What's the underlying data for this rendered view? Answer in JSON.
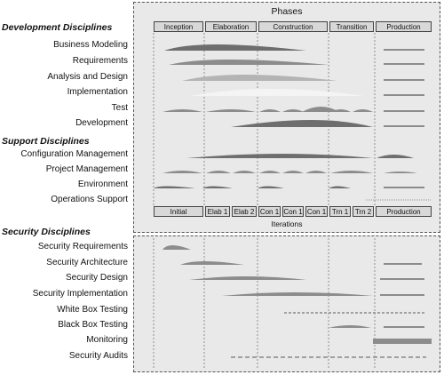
{
  "phases_title": "Phases",
  "iterations_label": "Iterations",
  "phases": [
    "Inception",
    "Elaboration",
    "Construction",
    "Transition",
    "Production"
  ],
  "iterations": [
    "Initial",
    "Elab 1",
    "Elab 2",
    "Con 1",
    "Con 1",
    "Con 1",
    "Trn 1",
    "Trn 2",
    "Production"
  ],
  "sections": {
    "development": {
      "title": "Development Disciplines",
      "items": [
        "Business Modeling",
        "Requirements",
        "Analysis and Design",
        "Implementation",
        "Test",
        "Development"
      ]
    },
    "support": {
      "title": "Support Disciplines",
      "items": [
        "Configuration Management",
        "Project Management",
        "Environment",
        "Operations Support"
      ]
    },
    "security": {
      "title": "Security Disciplines",
      "items": [
        "Security Requirements",
        "Security Architecture",
        "Security Design",
        "Security Implementation",
        "White Box Testing",
        "Black Box Testing",
        "Monitoring",
        "Security Audits"
      ]
    }
  },
  "colors": {
    "panel": "#e9e9e9",
    "box": "#d8d8d8",
    "hump_dark": "#6e6e6e",
    "hump_mid": "#8c8c8c",
    "hump_light": "#b4b4b4",
    "hump_white": "#f4f4f4"
  }
}
